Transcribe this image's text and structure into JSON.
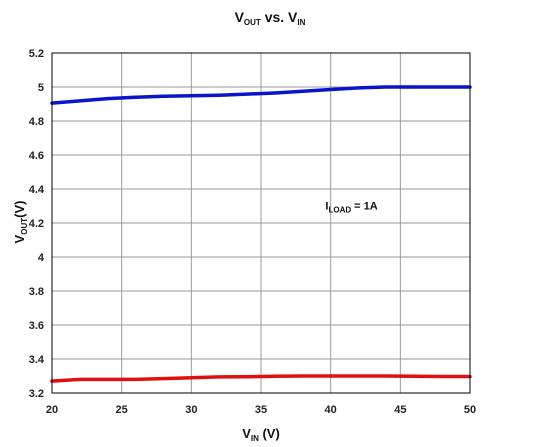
{
  "chart_data": {
    "type": "line",
    "title": {
      "main": "V",
      "main_sub": "OUT",
      "mid": " vs. V",
      "mid_sub": "IN"
    },
    "xlabel": {
      "main": "V",
      "sub": "IN",
      "rest": " (V)"
    },
    "ylabel": {
      "main": "V",
      "sub": "OUT",
      "rest": "(V)"
    },
    "xlim": [
      20,
      50
    ],
    "ylim": [
      3.2,
      5.2
    ],
    "x_ticks": [
      20,
      25,
      30,
      35,
      40,
      45,
      50
    ],
    "x_tick_labels": [
      "20",
      "25",
      "30",
      "35",
      "40",
      "45",
      "50"
    ],
    "y_ticks": [
      3.2,
      3.4,
      3.6,
      3.8,
      4.0,
      4.2,
      4.4,
      4.6,
      4.8,
      5.0,
      5.2
    ],
    "y_tick_labels": [
      "3.2",
      "3.4",
      "3.6",
      "3.8",
      "4",
      "4.2",
      "4.4",
      "4.6",
      "4.8",
      "5",
      "5.2"
    ],
    "grid": true,
    "series": [
      {
        "color": "#0a14cc",
        "x": [
          20,
          22,
          24,
          26,
          28,
          30,
          32,
          34,
          36,
          38,
          40,
          42,
          44,
          46,
          48,
          50
        ],
        "y": [
          4.905,
          4.918,
          4.932,
          4.94,
          4.945,
          4.948,
          4.952,
          4.958,
          4.965,
          4.975,
          4.985,
          4.995,
          5.0,
          5.0,
          5.0,
          5.0
        ]
      },
      {
        "color": "#e01010",
        "x": [
          20,
          22,
          24,
          26,
          28,
          30,
          32,
          34,
          36,
          38,
          40,
          42,
          44,
          46,
          48,
          50
        ],
        "y": [
          3.27,
          3.28,
          3.28,
          3.28,
          3.285,
          3.29,
          3.295,
          3.296,
          3.298,
          3.3,
          3.3,
          3.3,
          3.3,
          3.298,
          3.297,
          3.297
        ]
      }
    ],
    "annotations": [
      {
        "main": "I",
        "sub": "LOAD",
        "rest": " = 1A",
        "x": 41.5,
        "y": 4.28
      }
    ]
  }
}
